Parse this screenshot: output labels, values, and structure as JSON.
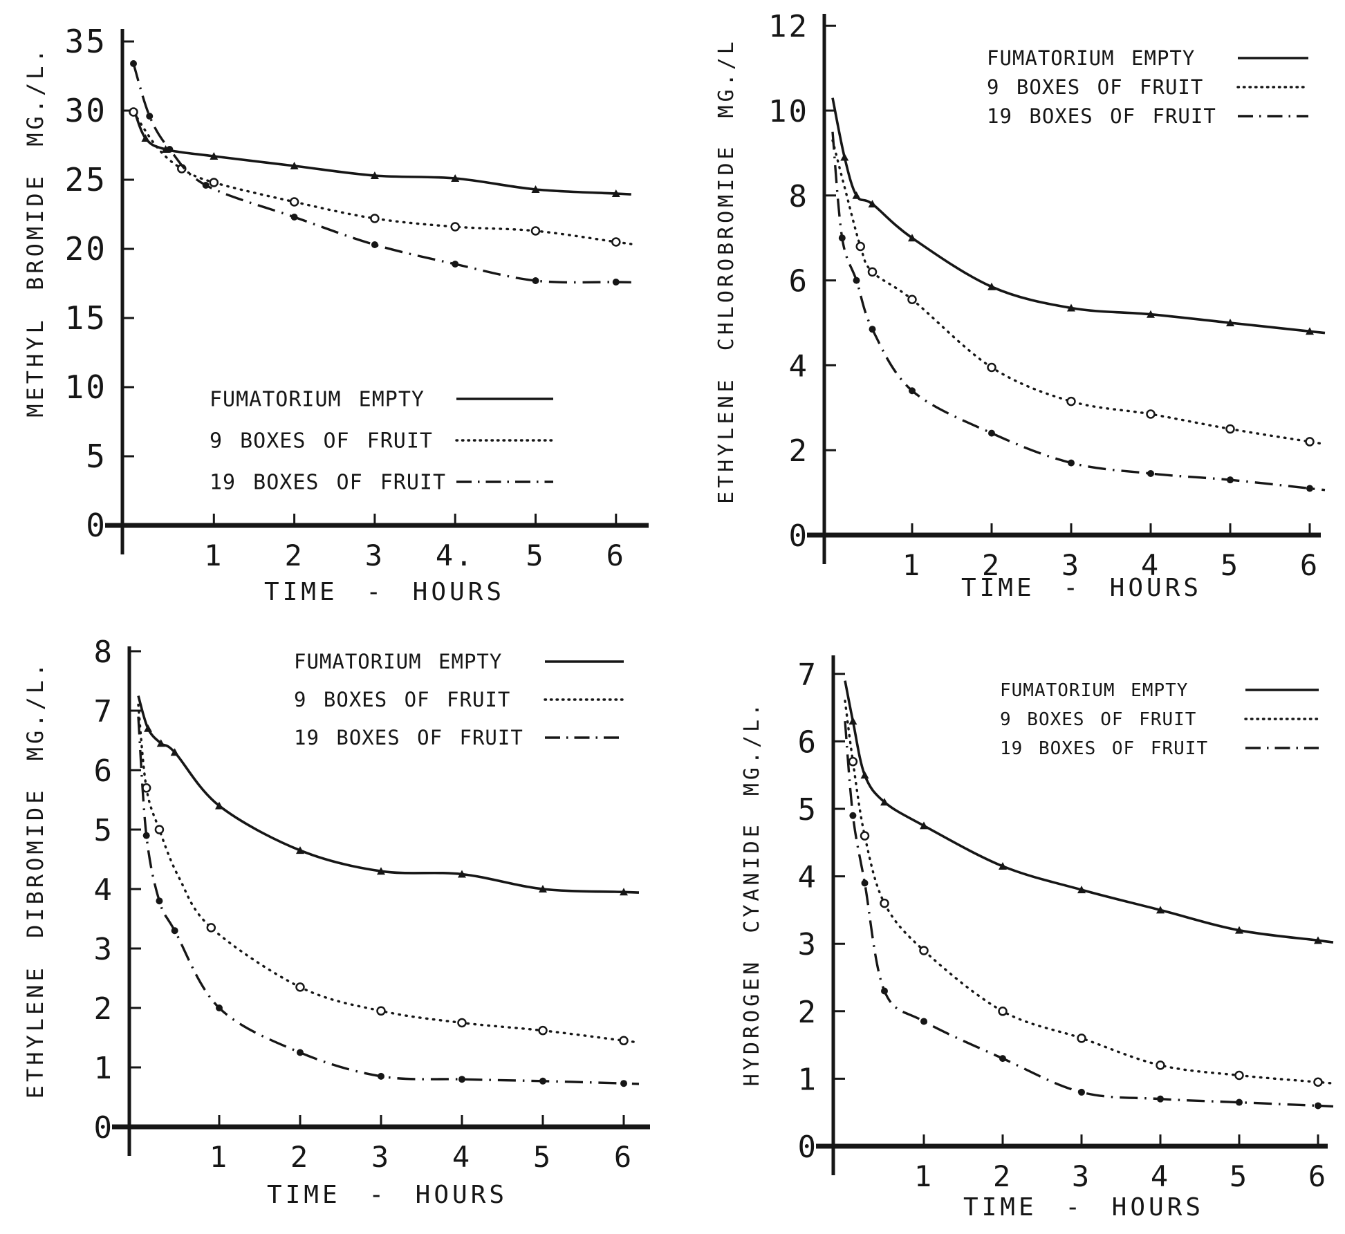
{
  "page": {
    "background": "#ffffff",
    "ink": "#161616"
  },
  "chart_data": [
    {
      "id": "methyl-bromide",
      "type": "line",
      "title": "",
      "ylabel": "METHYL BROMIDE MG./L.",
      "xlabel": "TIME - HOURS",
      "xlim": [
        0,
        6.2
      ],
      "ylim": [
        0,
        35
      ],
      "grid": false,
      "legend_position": "center-left-inside",
      "yticks": [
        {
          "v": 0,
          "label": "0"
        },
        {
          "v": 5,
          "label": "5"
        },
        {
          "v": 10,
          "label": "10"
        },
        {
          "v": 15,
          "label": "15"
        },
        {
          "v": 20,
          "label": "20"
        },
        {
          "v": 25,
          "label": "25"
        },
        {
          "v": 30,
          "label": "30"
        },
        {
          "v": 35,
          "label": "35"
        }
      ],
      "xticks": [
        {
          "v": 1,
          "label": "1"
        },
        {
          "v": 2,
          "label": "2"
        },
        {
          "v": 3,
          "label": "3"
        },
        {
          "v": 4,
          "label": "4."
        },
        {
          "v": 5,
          "label": "5"
        },
        {
          "v": 6,
          "label": "6"
        }
      ],
      "series": [
        {
          "name": "FUMATORIUM EMPTY",
          "style": "solid",
          "marker": "triangle",
          "points": [
            [
              0,
              30.2,
              0
            ],
            [
              0.15,
              28,
              1
            ],
            [
              0.4,
              27.2,
              1
            ],
            [
              1,
              26.7,
              1
            ],
            [
              2,
              26,
              1
            ],
            [
              3,
              25.3,
              1
            ],
            [
              4,
              25.1,
              1
            ],
            [
              5,
              24.3,
              1
            ],
            [
              6,
              24,
              1
            ]
          ]
        },
        {
          "name": "9 BOXES OF FRUIT",
          "style": "dotted",
          "marker": "open-circle",
          "points": [
            [
              0,
              29.9,
              1
            ],
            [
              0.3,
              27.3,
              0
            ],
            [
              0.6,
              25.8,
              1
            ],
            [
              1,
              24.8,
              1
            ],
            [
              2,
              23.4,
              1
            ],
            [
              3,
              22.2,
              1
            ],
            [
              4,
              21.6,
              1
            ],
            [
              5,
              21.3,
              1
            ],
            [
              6,
              20.5,
              1
            ]
          ]
        },
        {
          "name": "19 BOXES OF FRUIT",
          "style": "dashdot",
          "marker": "filled-circle",
          "points": [
            [
              0,
              33.4,
              1
            ],
            [
              0.2,
              29.6,
              1
            ],
            [
              0.45,
              27.2,
              1
            ],
            [
              0.9,
              24.6,
              1
            ],
            [
              2,
              22.3,
              1
            ],
            [
              3,
              20.3,
              1
            ],
            [
              4,
              18.9,
              1
            ],
            [
              5,
              17.7,
              1
            ],
            [
              6,
              17.6,
              1
            ]
          ]
        }
      ]
    },
    {
      "id": "ethylene-chlorobromide",
      "type": "line",
      "title": "",
      "ylabel": "ETHYLENE CHLOROBROMIDE MG./L",
      "xlabel": "TIME - HOURS",
      "xlim": [
        0,
        6.2
      ],
      "ylim": [
        0,
        12
      ],
      "grid": false,
      "legend_position": "top-right-inside",
      "yticks": [
        {
          "v": 0,
          "label": "0"
        },
        {
          "v": 2,
          "label": "2"
        },
        {
          "v": 4,
          "label": "4"
        },
        {
          "v": 6,
          "label": "6"
        },
        {
          "v": 8,
          "label": "8"
        },
        {
          "v": 10,
          "label": "10"
        },
        {
          "v": 12,
          "label": "12"
        }
      ],
      "xticks": [
        {
          "v": 1,
          "label": "1"
        },
        {
          "v": 2,
          "label": "2"
        },
        {
          "v": 3,
          "label": "3"
        },
        {
          "v": 4,
          "label": "4"
        },
        {
          "v": 5,
          "label": "5"
        },
        {
          "v": 6,
          "label": "6"
        }
      ],
      "series": [
        {
          "name": "FUMATORIUM EMPTY",
          "style": "solid",
          "marker": "triangle",
          "points": [
            [
              0,
              10.3,
              0
            ],
            [
              0.15,
              8.9,
              1
            ],
            [
              0.3,
              8.0,
              1
            ],
            [
              0.5,
              7.8,
              1
            ],
            [
              1,
              7.0,
              1
            ],
            [
              2,
              5.85,
              1
            ],
            [
              3,
              5.35,
              1
            ],
            [
              4,
              5.2,
              1
            ],
            [
              5,
              5.0,
              1
            ],
            [
              6,
              4.8,
              1
            ]
          ]
        },
        {
          "name": "9 BOXES OF FRUIT",
          "style": "dotted",
          "marker": "open-circle",
          "points": [
            [
              0,
              9.3,
              0
            ],
            [
              0.15,
              8.2,
              0
            ],
            [
              0.35,
              6.8,
              1
            ],
            [
              0.5,
              6.2,
              1
            ],
            [
              1,
              5.55,
              1
            ],
            [
              2,
              3.95,
              1
            ],
            [
              3,
              3.15,
              1
            ],
            [
              4,
              2.85,
              1
            ],
            [
              5,
              2.5,
              1
            ],
            [
              6,
              2.2,
              1
            ]
          ]
        },
        {
          "name": "19 BOXES OF FRUIT",
          "style": "dashdot",
          "marker": "filled-circle",
          "points": [
            [
              0,
              9.5,
              0
            ],
            [
              0.12,
              7.0,
              1
            ],
            [
              0.3,
              6.0,
              1
            ],
            [
              0.5,
              4.85,
              1
            ],
            [
              1,
              3.4,
              1
            ],
            [
              2,
              2.4,
              1
            ],
            [
              3,
              1.7,
              1
            ],
            [
              4,
              1.45,
              1
            ],
            [
              5,
              1.3,
              1
            ],
            [
              6,
              1.1,
              1
            ]
          ]
        }
      ]
    },
    {
      "id": "ethylene-dibromide",
      "type": "line",
      "title": "",
      "ylabel": "ETHYLENE DIBROMIDE MG./L.",
      "xlabel": "TIME - HOURS",
      "xlim": [
        0,
        6.2
      ],
      "ylim": [
        0,
        8
      ],
      "grid": false,
      "legend_position": "top-right-inside",
      "yticks": [
        {
          "v": 0,
          "label": "0"
        },
        {
          "v": 1,
          "label": "1"
        },
        {
          "v": 2,
          "label": "2"
        },
        {
          "v": 3,
          "label": "3"
        },
        {
          "v": 4,
          "label": "4"
        },
        {
          "v": 5,
          "label": "5"
        },
        {
          "v": 6,
          "label": "6"
        },
        {
          "v": 7,
          "label": "7"
        },
        {
          "v": 8,
          "label": "8"
        }
      ],
      "xticks": [
        {
          "v": 1,
          "label": "1"
        },
        {
          "v": 2,
          "label": "2"
        },
        {
          "v": 3,
          "label": "3"
        },
        {
          "v": 4,
          "label": "4"
        },
        {
          "v": 5,
          "label": "5"
        },
        {
          "v": 6,
          "label": "6"
        }
      ],
      "series": [
        {
          "name": "FUMATORIUM EMPTY",
          "style": "solid",
          "marker": "triangle",
          "points": [
            [
              0,
              7.25,
              0
            ],
            [
              0.12,
              6.7,
              1
            ],
            [
              0.28,
              6.45,
              1
            ],
            [
              0.45,
              6.3,
              1
            ],
            [
              1,
              5.4,
              1
            ],
            [
              2,
              4.65,
              1
            ],
            [
              3,
              4.3,
              1
            ],
            [
              4,
              4.25,
              1
            ],
            [
              5,
              4.0,
              1
            ],
            [
              6,
              3.95,
              1
            ]
          ]
        },
        {
          "name": "9 BOXES OF FRUIT",
          "style": "dotted",
          "marker": "open-circle",
          "points": [
            [
              0,
              7.1,
              0
            ],
            [
              0.1,
              5.7,
              1
            ],
            [
              0.26,
              5.0,
              1
            ],
            [
              0.5,
              4.2,
              0
            ],
            [
              0.9,
              3.35,
              1
            ],
            [
              2,
              2.35,
              1
            ],
            [
              3,
              1.95,
              1
            ],
            [
              4,
              1.75,
              1
            ],
            [
              5,
              1.62,
              1
            ],
            [
              6,
              1.45,
              1
            ]
          ]
        },
        {
          "name": "19 BOXES OF FRUIT",
          "style": "dashdot",
          "marker": "filled-circle",
          "points": [
            [
              0,
              6.9,
              0
            ],
            [
              0.1,
              4.9,
              1
            ],
            [
              0.26,
              3.8,
              1
            ],
            [
              0.45,
              3.3,
              1
            ],
            [
              1,
              2.0,
              1
            ],
            [
              2,
              1.25,
              1
            ],
            [
              3,
              0.85,
              1
            ],
            [
              4,
              0.8,
              1
            ],
            [
              5,
              0.77,
              1
            ],
            [
              6,
              0.73,
              1
            ]
          ]
        }
      ]
    },
    {
      "id": "hydrogen-cyanide",
      "type": "line",
      "title": "",
      "ylabel": "HYDROGEN CYANIDE MG./L.",
      "xlabel": "TIME - HOURS",
      "xlim": [
        0,
        6.2
      ],
      "ylim": [
        0,
        7
      ],
      "grid": false,
      "legend_position": "top-right-inside",
      "yticks": [
        {
          "v": 0,
          "label": "0"
        },
        {
          "v": 1,
          "label": "1"
        },
        {
          "v": 2,
          "label": "2"
        },
        {
          "v": 3,
          "label": "3"
        },
        {
          "v": 4,
          "label": "4"
        },
        {
          "v": 5,
          "label": "5"
        },
        {
          "v": 6,
          "label": "6"
        },
        {
          "v": 7,
          "label": "7"
        }
      ],
      "xticks": [
        {
          "v": 1,
          "label": "1"
        },
        {
          "v": 2,
          "label": "2"
        },
        {
          "v": 3,
          "label": "3"
        },
        {
          "v": 4,
          "label": "4"
        },
        {
          "v": 5,
          "label": "5"
        },
        {
          "v": 6,
          "label": "6"
        }
      ],
      "series": [
        {
          "name": "FUMATORIUM EMPTY",
          "style": "solid",
          "marker": "triangle",
          "points": [
            [
              0,
              6.9,
              0
            ],
            [
              0.1,
              6.3,
              1
            ],
            [
              0.25,
              5.5,
              1
            ],
            [
              0.5,
              5.1,
              1
            ],
            [
              1,
              4.75,
              1
            ],
            [
              2,
              4.15,
              1
            ],
            [
              3,
              3.8,
              1
            ],
            [
              4,
              3.5,
              1
            ],
            [
              5,
              3.2,
              1
            ],
            [
              6,
              3.05,
              1
            ]
          ]
        },
        {
          "name": "9 BOXES OF FRUIT",
          "style": "dotted",
          "marker": "open-circle",
          "points": [
            [
              0,
              6.6,
              0
            ],
            [
              0.1,
              5.7,
              1
            ],
            [
              0.25,
              4.6,
              1
            ],
            [
              0.5,
              3.6,
              1
            ],
            [
              1,
              2.9,
              1
            ],
            [
              2,
              2.0,
              1
            ],
            [
              3,
              1.6,
              1
            ],
            [
              4,
              1.2,
              1
            ],
            [
              5,
              1.05,
              1
            ],
            [
              6,
              0.95,
              1
            ]
          ]
        },
        {
          "name": "19 BOXES OF FRUIT",
          "style": "dashdot",
          "marker": "filled-circle",
          "points": [
            [
              0,
              6.3,
              0
            ],
            [
              0.1,
              4.9,
              1
            ],
            [
              0.25,
              3.9,
              1
            ],
            [
              0.5,
              2.3,
              1
            ],
            [
              1,
              1.85,
              1
            ],
            [
              2,
              1.3,
              1
            ],
            [
              3,
              0.8,
              1
            ],
            [
              4,
              0.7,
              1
            ],
            [
              5,
              0.65,
              1
            ],
            [
              6,
              0.6,
              1
            ]
          ]
        }
      ]
    }
  ]
}
